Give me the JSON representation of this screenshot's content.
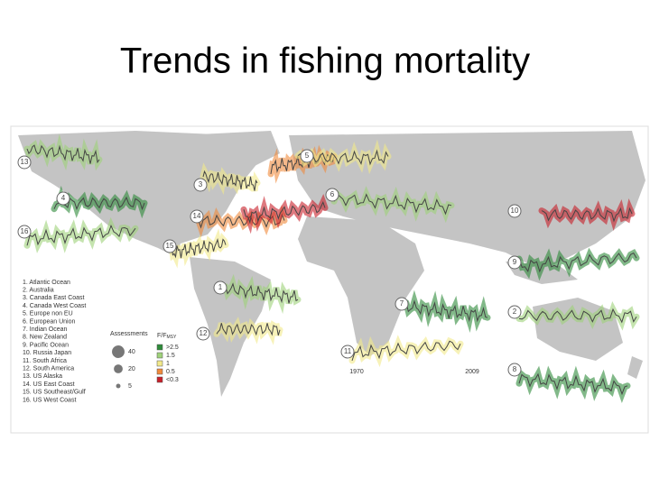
{
  "title": "Trends in fishing mortality",
  "map": {
    "region_legend": [
      "1. Atlantic Ocean",
      "2. Australia",
      "3. Canada East Coast",
      "4. Canada West Coast",
      "5. Europe non EU",
      "6. European Union",
      "7. Indian Ocean",
      "8. New Zealand",
      "9. Pacific Ocean",
      "10. Russia Japan",
      "11. South Africa",
      "12. South America",
      "13. US Alaska",
      "14. US East Coast",
      "15. US Southeast/Gulf",
      "16. US West Coast"
    ],
    "markers": [
      "13",
      "4",
      "16",
      "3",
      "14",
      "15",
      "1",
      "12",
      "5",
      "6",
      "10",
      "9",
      "7",
      "2",
      "11",
      "8"
    ],
    "axis_years": [
      "1970",
      "2009"
    ],
    "assessments": {
      "title": "Assessments",
      "sizes": [
        40,
        20,
        5
      ]
    },
    "f_legend": {
      "title": "F/F",
      "title_sub": "MSY",
      "items": [
        {
          "label": ">2.5",
          "color": "#2e8b3a"
        },
        {
          "label": "1.5",
          "color": "#9fd27a"
        },
        {
          "label": "1",
          "color": "#f2e98a"
        },
        {
          "label": "0.5",
          "color": "#f08a3c"
        },
        {
          "label": "<0.3",
          "color": "#c8202a"
        }
      ]
    }
  }
}
